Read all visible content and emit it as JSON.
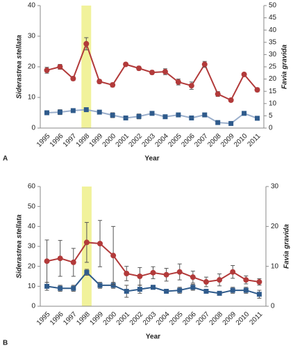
{
  "chart_data": [
    {
      "type": "line",
      "panel": "A",
      "xlabel": "Year",
      "ylabel": "Siderastrea stellata",
      "y2label": "Favia gravida",
      "categories": [
        "1995",
        "1996",
        "1997",
        "1998",
        "1999",
        "2000",
        "2001",
        "2002",
        "2003",
        "2004",
        "2005",
        "2006",
        "2007",
        "2008",
        "2009",
        "2010",
        "2011"
      ],
      "ylim": [
        0,
        40
      ],
      "yticks": [
        0,
        10,
        20,
        30,
        40
      ],
      "y2lim": [
        0,
        50
      ],
      "y2ticks": [
        0,
        5,
        10,
        15,
        20,
        25,
        30,
        35,
        40,
        45,
        50
      ],
      "series": [
        {
          "color": "#2f5b8c",
          "line_color": "#9aaecb",
          "marker": "square",
          "axis": "y",
          "values": [
            5,
            5.2,
            5.7,
            6,
            5.2,
            4.2,
            3.3,
            3.8,
            4.8,
            3.7,
            4.3,
            3.3,
            4.3,
            1.8,
            1.5,
            4.8,
            3.2
          ],
          "errors": [
            0.6,
            0.8,
            0.5,
            0.6,
            0.6,
            0.8,
            0.5,
            0.8,
            0.3,
            0.5,
            0.4,
            0.5,
            0.5,
            0.4,
            0.4,
            0.4,
            0.6
          ]
        },
        {
          "color": "#b23a3a",
          "line_color": "#b23a3a",
          "marker": "circle",
          "axis": "y2",
          "values": [
            23.6,
            25,
            20.2,
            34.4,
            19,
            17.6,
            26,
            24.4,
            22.7,
            23,
            18.8,
            17.3,
            26,
            13.9,
            11.4,
            21.9,
            15.6
          ],
          "errors": [
            1.2,
            1,
            0.8,
            2.5,
            0.8,
            0.8,
            0.6,
            0.8,
            0.8,
            1.2,
            1.2,
            1.5,
            1.2,
            1,
            0.6,
            0.6,
            0.8
          ]
        }
      ]
    },
    {
      "type": "line",
      "panel": "B",
      "xlabel": "Year",
      "ylabel": "Siderastrea stellata",
      "y2label": "Favia gravida",
      "categories": [
        "1995",
        "1996",
        "1997",
        "1998",
        "1999",
        "2000",
        "2001",
        "2002",
        "2003",
        "2004",
        "2005",
        "2006",
        "2007",
        "2008",
        "2009",
        "2010",
        "2011"
      ],
      "ylim": [
        0,
        60
      ],
      "yticks": [
        0,
        10,
        20,
        30,
        40,
        50,
        60
      ],
      "y2lim": [
        0,
        30
      ],
      "y2ticks": [
        0,
        10,
        20,
        30
      ],
      "series": [
        {
          "color": "#2f5b8c",
          "line_color": "#2f5b8c",
          "marker": "square",
          "axis": "y",
          "values": [
            10,
            9,
            9,
            17,
            10.5,
            10.5,
            7.5,
            8.5,
            9.5,
            7.5,
            8,
            9.5,
            7.5,
            6.5,
            8,
            8,
            6
          ],
          "errors": [
            2,
            1.5,
            1.5,
            1.5,
            1.5,
            1.5,
            3,
            2,
            1,
            1,
            1.5,
            1.5,
            1,
            1,
            1.5,
            1.5,
            2
          ]
        },
        {
          "color": "#b23a3a",
          "line_color": "#b23a3a",
          "marker": "circle",
          "axis": "y2",
          "values": [
            11.3,
            12,
            11,
            16,
            15.7,
            12.7,
            8.2,
            7.5,
            8.4,
            7.9,
            8.6,
            7.3,
            6.1,
            6.6,
            8.6,
            6.6,
            6.1
          ],
          "errors": [
            5.3,
            4.5,
            3.5,
            5,
            5.8,
            7.3,
            1.8,
            2.2,
            1.5,
            1.6,
            2,
            1.5,
            1.2,
            1.5,
            1.6,
            1,
            0.8
          ]
        }
      ]
    }
  ]
}
